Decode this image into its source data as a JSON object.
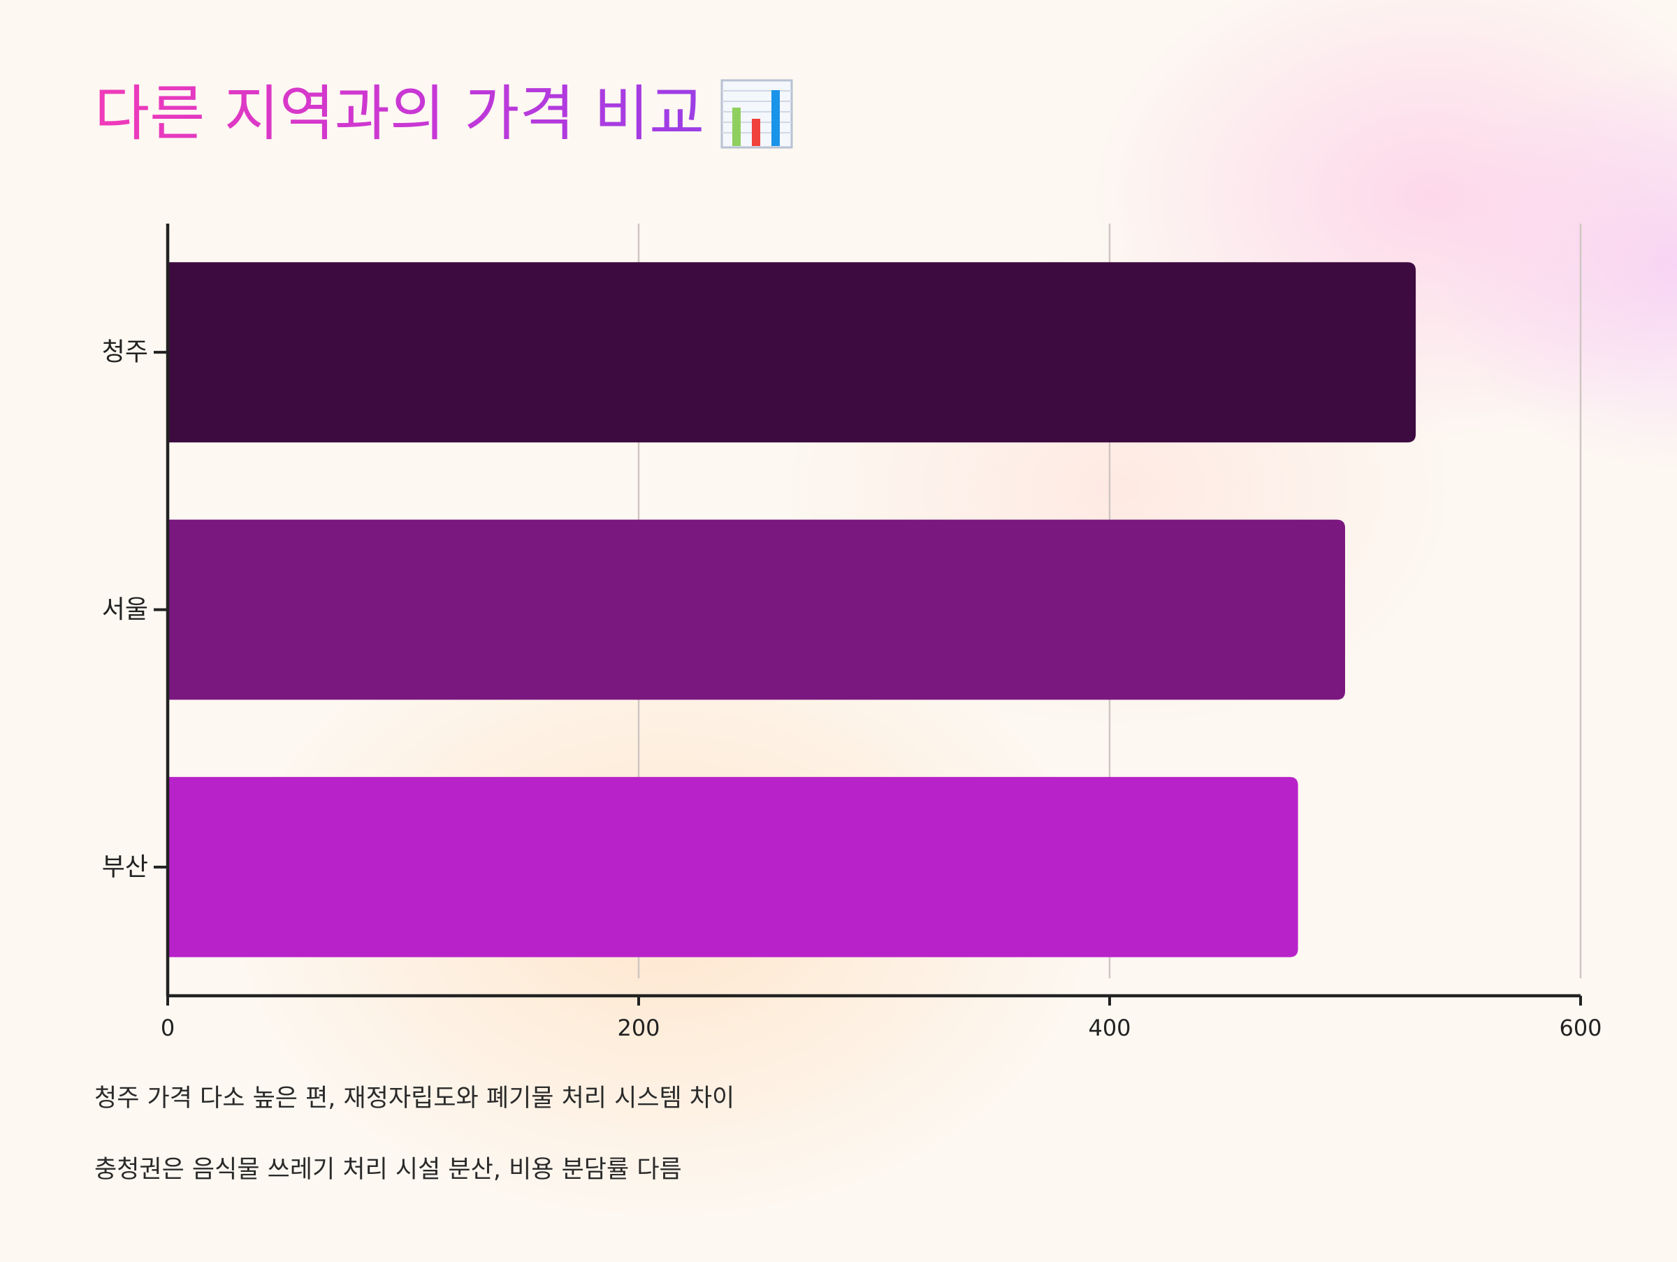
{
  "title": {
    "text": "다른 지역과의 가격 비교",
    "icon": "bar-chart-icon"
  },
  "chart_data": {
    "type": "bar",
    "orientation": "horizontal",
    "categories": [
      "청주",
      "서울",
      "부산"
    ],
    "values": [
      530,
      500,
      480
    ],
    "colors": [
      "#3d0b40",
      "#7a1880",
      "#b823c9"
    ],
    "xlim": [
      0,
      600
    ],
    "xticks": [
      0,
      200,
      400,
      600
    ],
    "xtick_labels": [
      "0",
      "200",
      "400",
      "600"
    ],
    "grid": true,
    "title": "",
    "xlabel": "",
    "ylabel": ""
  },
  "notes": [
    "청주 가격 다소 높은 편, 재정자립도와 폐기물 처리 시스템 차이",
    "충청권은 음식물 쓰레기 처리 시설 분산, 비용 분담률 다름"
  ]
}
